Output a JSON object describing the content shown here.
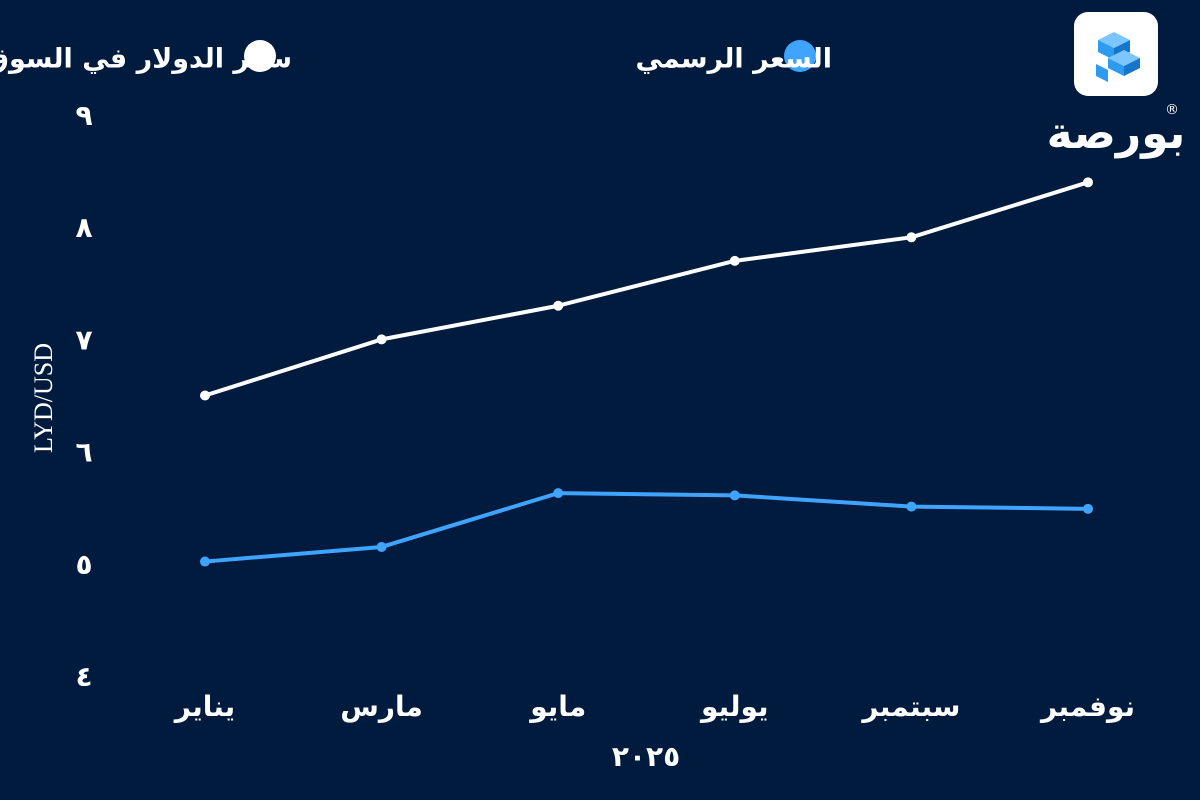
{
  "brand": {
    "name": "بورصة",
    "registered_mark": "®"
  },
  "colors": {
    "background": "#001b3d",
    "black_market": "#ffffff",
    "official": "#3fa4ff",
    "logo_tile": "#ffffff",
    "logo_mark": "#2d9bf0"
  },
  "icons": {
    "logo": "cube-stack-icon"
  },
  "chart_data": {
    "type": "line",
    "title": "",
    "xlabel": "٢٠٢٥",
    "ylabel": "LYD/USD",
    "categories": [
      "يناير",
      "مارس",
      "مايو",
      "يوليو",
      "سبتمبر",
      "نوفمبر"
    ],
    "y_ticks": [
      {
        "value": 4,
        "label": "٤"
      },
      {
        "value": 5,
        "label": "٥"
      },
      {
        "value": 6,
        "label": "٦"
      },
      {
        "value": 7,
        "label": "٧"
      },
      {
        "value": 8,
        "label": "٨"
      },
      {
        "value": 9,
        "label": "٩"
      }
    ],
    "ylim": [
      4,
      9
    ],
    "grid": false,
    "legend_position": "top",
    "series": [
      {
        "name": "سعر الدولار في السوق السوداء",
        "color": "#ffffff",
        "values": [
          6.5,
          7.0,
          7.3,
          7.7,
          7.91,
          8.4
        ]
      },
      {
        "name": "السعر الرسمي",
        "color": "#3fa4ff",
        "values": [
          5.02,
          5.15,
          5.63,
          5.61,
          5.51,
          5.49
        ]
      }
    ]
  }
}
